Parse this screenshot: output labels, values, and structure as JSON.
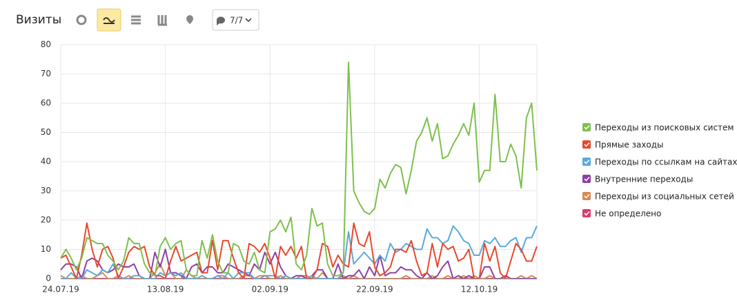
{
  "toolbar": {
    "filter_label": "7/7"
  },
  "chart_data": {
    "type": "line",
    "title": "Визиты",
    "categories": [
      "24.07.19",
      null,
      null,
      null,
      null,
      null,
      null,
      null,
      null,
      null,
      null,
      null,
      null,
      null,
      null,
      null,
      null,
      null,
      null,
      null,
      "13.08.19",
      null,
      null,
      null,
      null,
      null,
      null,
      null,
      null,
      null,
      null,
      null,
      null,
      null,
      null,
      null,
      null,
      null,
      null,
      null,
      "02.09.19",
      null,
      null,
      null,
      null,
      null,
      null,
      null,
      null,
      null,
      null,
      null,
      null,
      null,
      null,
      null,
      null,
      null,
      null,
      null,
      "22.09.19",
      null,
      null,
      null,
      null,
      null,
      null,
      null,
      null,
      null,
      null,
      null,
      null,
      null,
      null,
      null,
      null,
      null,
      null,
      null,
      "12.10.19",
      null,
      null,
      null,
      null,
      null,
      null,
      null,
      null,
      null,
      null,
      null
    ],
    "series": [
      {
        "name": "Переходы из поисковых систем",
        "color": "#7cc04b",
        "values": [
          7,
          10,
          7,
          3,
          7,
          14,
          13,
          12,
          12,
          8,
          6,
          3,
          6,
          14,
          12,
          12,
          5,
          2,
          1,
          11,
          14,
          10,
          12,
          13,
          3,
          1,
          1,
          13,
          7,
          15,
          6,
          2,
          2,
          12,
          11,
          6,
          5,
          9,
          3,
          2,
          16,
          17,
          20,
          16,
          21,
          5,
          3,
          8,
          24,
          18,
          19,
          5,
          1,
          1,
          2,
          74,
          30,
          26,
          23,
          22,
          24,
          34,
          31,
          36,
          39,
          38,
          29,
          37,
          47,
          50,
          55,
          47,
          53,
          41,
          42,
          46,
          49,
          53,
          49,
          60,
          33,
          37,
          37,
          63,
          40,
          40,
          46,
          42,
          31,
          55,
          60,
          37
        ]
      },
      {
        "name": "Прямые заходы",
        "color": "#e8472b",
        "values": [
          7,
          8,
          4,
          0,
          8,
          19,
          10,
          4,
          10,
          11,
          7,
          0,
          4,
          9,
          11,
          10,
          11,
          4,
          1,
          1,
          0,
          6,
          11,
          6,
          7,
          8,
          9,
          2,
          2,
          13,
          3,
          13,
          13,
          7,
          2,
          0,
          12,
          11,
          9,
          12,
          7,
          0,
          11,
          8,
          11,
          7,
          11,
          0,
          0,
          3,
          12,
          11,
          4,
          8,
          5,
          4,
          19,
          12,
          11,
          16,
          4,
          1,
          2,
          4,
          10,
          10,
          9,
          13,
          6,
          1,
          2,
          12,
          4,
          12,
          10,
          11,
          6,
          7,
          10,
          0,
          0,
          12,
          6,
          11,
          2,
          0,
          6,
          12,
          10,
          6,
          6,
          11
        ]
      },
      {
        "name": "Переходы по ссылкам на сайтах",
        "color": "#5aa8dd",
        "values": [
          0,
          0,
          2,
          0,
          0,
          3,
          2,
          1,
          3,
          2,
          5,
          1,
          0,
          0,
          1,
          1,
          0,
          0,
          0,
          2,
          1,
          2,
          1,
          2,
          0,
          0,
          0,
          1,
          0,
          0,
          1,
          0,
          2,
          0,
          2,
          2,
          2,
          0,
          0,
          1,
          1,
          1,
          0,
          1,
          0,
          0,
          0,
          0,
          1,
          0,
          0,
          0,
          0,
          0,
          2,
          16,
          5,
          7,
          9,
          7,
          5,
          8,
          6,
          12,
          9,
          10,
          12,
          11,
          10,
          10,
          17,
          14,
          14,
          12,
          13,
          18,
          16,
          13,
          12,
          8,
          8,
          13,
          12,
          14,
          11,
          11,
          13,
          14,
          9,
          14,
          14,
          18
        ]
      },
      {
        "name": "Внутренние переходы",
        "color": "#8e3ea5",
        "values": [
          3,
          5,
          5,
          4,
          0,
          6,
          7,
          6,
          3,
          2,
          3,
          5,
          4,
          4,
          5,
          1,
          0,
          0,
          9,
          4,
          10,
          2,
          2,
          1,
          0,
          4,
          5,
          2,
          4,
          4,
          2,
          2,
          5,
          4,
          3,
          2,
          1,
          5,
          3,
          9,
          5,
          9,
          4,
          1,
          0,
          1,
          1,
          0,
          1,
          3,
          3,
          0,
          0,
          5,
          0,
          1,
          1,
          3,
          0,
          4,
          1,
          8,
          1,
          2,
          2,
          4,
          3,
          3,
          1,
          0,
          2,
          0,
          1,
          4,
          6,
          0,
          1,
          0,
          1,
          0,
          0,
          4,
          4,
          0,
          0,
          1,
          0,
          0,
          0,
          0,
          0,
          0
        ]
      },
      {
        "name": "Переходы из социальных сетей",
        "color": "#d9894f",
        "values": [
          1,
          0,
          0,
          0,
          1,
          0,
          0,
          1,
          2,
          0,
          0,
          1,
          0,
          1,
          0,
          0,
          0,
          0,
          2,
          5,
          1,
          2,
          0,
          0,
          3,
          1,
          0,
          0,
          0,
          0,
          1,
          1,
          0,
          0,
          0,
          1,
          1,
          0,
          1,
          1,
          0,
          0,
          1,
          0,
          0,
          0,
          1,
          1,
          0,
          0,
          2,
          0,
          0,
          0,
          1,
          0,
          1,
          0,
          0,
          0,
          0,
          0,
          0,
          0,
          0,
          0,
          1,
          0,
          0,
          0,
          0,
          1,
          0,
          0,
          1,
          0,
          0,
          1,
          0,
          1,
          0,
          0,
          1,
          0,
          0,
          0,
          0,
          0,
          1,
          0,
          1,
          0
        ]
      },
      {
        "name": "Не определено",
        "color": "#db3a6b",
        "values": [
          0,
          0,
          0,
          0,
          0,
          0,
          0,
          0,
          0,
          0,
          0,
          0,
          0,
          0,
          0,
          0,
          0,
          0,
          0,
          0,
          0,
          0,
          0,
          0,
          0,
          0,
          0,
          0,
          0,
          0,
          0,
          0,
          0,
          0,
          0,
          0,
          0,
          0,
          0,
          0,
          0,
          0,
          0,
          0,
          0,
          0,
          0,
          0,
          0,
          0,
          0,
          0,
          0,
          0,
          0,
          0,
          0,
          0,
          0,
          0,
          0,
          0,
          0,
          0,
          0,
          0,
          0,
          0,
          0,
          0,
          0,
          0,
          0,
          0,
          0,
          0,
          0,
          0,
          0,
          0,
          0,
          0,
          0,
          0,
          0,
          0,
          0,
          0,
          0,
          0,
          0,
          0
        ]
      }
    ],
    "ylim": [
      0,
      80
    ],
    "yticks": [
      0,
      10,
      20,
      30,
      40,
      50,
      60,
      70,
      80
    ],
    "grid": true,
    "legend": "right",
    "weekend_color": "#c0272d"
  }
}
